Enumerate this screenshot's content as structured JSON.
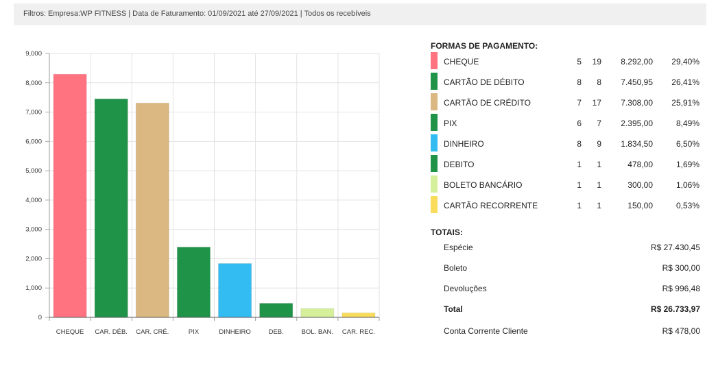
{
  "filters": "Filtros: Empresa:WP FITNESS | Data de Faturamento: 01/09/2021 até 27/09/2021 | Todos os recebíveis",
  "chart_data": {
    "type": "bar",
    "categories": [
      "CHEQUE",
      "CAR. DÉB.",
      "CAR. CRÉ.",
      "PIX",
      "DINHEIRO",
      "DEB.",
      "BOL. BAN.",
      "CAR. REC."
    ],
    "values": [
      8292.0,
      7450.95,
      7308.0,
      2395.0,
      1834.5,
      478.0,
      300.0,
      150.0
    ],
    "colors": [
      "#ff7280",
      "#1f9348",
      "#dbb881",
      "#1f9348",
      "#32bcf2",
      "#1f9348",
      "#d6ef9b",
      "#f9dc5c"
    ],
    "yticks": [
      0,
      1000,
      2000,
      3000,
      4000,
      5000,
      6000,
      7000,
      8000,
      9000
    ],
    "ytick_labels": [
      "0",
      "1,000",
      "2,000",
      "3,000",
      "4,000",
      "5,000",
      "6,000",
      "7,000",
      "8,000",
      "9,000"
    ],
    "ylim": [
      0,
      9000
    ],
    "grid": true,
    "title": "",
    "xlabel": "",
    "ylabel": ""
  },
  "legend": {
    "title": "FORMAS DE PAGAMENTO:",
    "items": [
      {
        "name": "CHEQUE",
        "qty": "5",
        "count": "19",
        "value": "8.292,00",
        "pct": "29,40%",
        "color": "#ff7280"
      },
      {
        "name": "CARTÃO DE DÉBITO",
        "qty": "8",
        "count": "8",
        "value": "7.450,95",
        "pct": "26,41%",
        "color": "#1f9348"
      },
      {
        "name": "CARTÃO DE CRÉDITO",
        "qty": "7",
        "count": "17",
        "value": "7.308,00",
        "pct": "25,91%",
        "color": "#dbb881"
      },
      {
        "name": "PIX",
        "qty": "6",
        "count": "7",
        "value": "2.395,00",
        "pct": "8,49%",
        "color": "#1f9348"
      },
      {
        "name": "DINHEIRO",
        "qty": "8",
        "count": "9",
        "value": "1.834,50",
        "pct": "6,50%",
        "color": "#32bcf2"
      },
      {
        "name": "DEBITO",
        "qty": "1",
        "count": "1",
        "value": "478,00",
        "pct": "1,69%",
        "color": "#1f9348"
      },
      {
        "name": "BOLETO BANCÁRIO",
        "qty": "1",
        "count": "1",
        "value": "300,00",
        "pct": "1,06%",
        "color": "#d6ef9b"
      },
      {
        "name": "CARTÃO RECORRENTE",
        "qty": "1",
        "count": "1",
        "value": "150,00",
        "pct": "0,53%",
        "color": "#f9dc5c"
      }
    ]
  },
  "totals": {
    "title": "TOTAIS:",
    "especie_label": "Espécie",
    "especie_value": "R$ 27.430,45",
    "boleto_label": "Boleto",
    "boleto_value": "R$ 300,00",
    "devolucoes_label": "Devoluções",
    "devolucoes_value": "R$ 996,48",
    "total_label": "Total",
    "total_value": "R$ 26.733,97",
    "conta_label": "Conta Corrente Cliente",
    "conta_value": "R$ 478,00"
  }
}
